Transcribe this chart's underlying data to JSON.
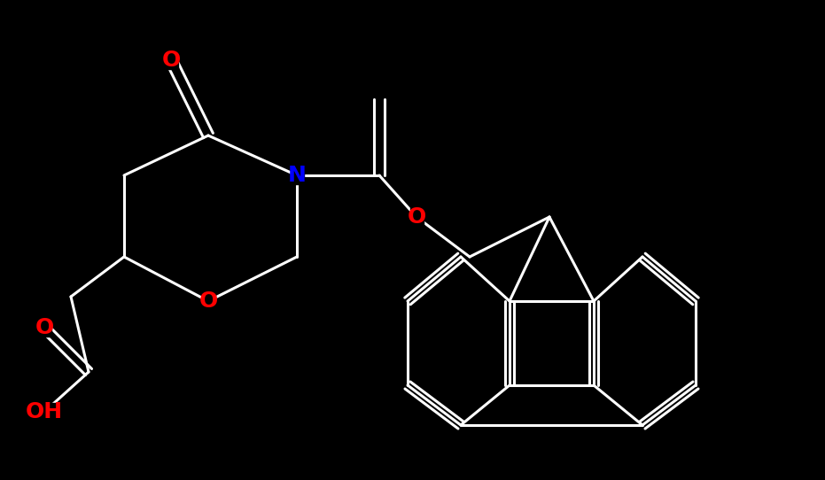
{
  "bg_color": "#000000",
  "bond_color": "#ffffff",
  "N_color": "#0000ff",
  "O_color": "#ff0000",
  "line_width": 2.2,
  "figsize": [
    9.31,
    5.42
  ],
  "dpi": 100,
  "xlim": [
    0,
    931
  ],
  "ylim": [
    0,
    542
  ]
}
